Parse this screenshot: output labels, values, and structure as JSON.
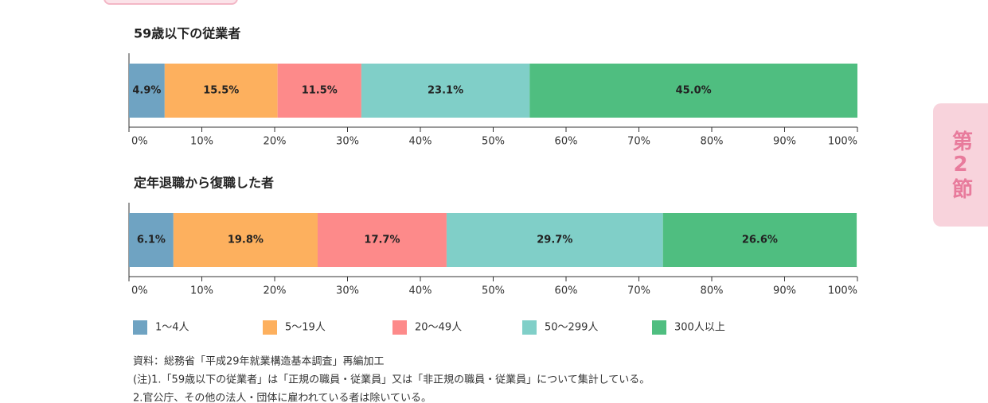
{
  "chart_data": [
    {
      "type": "bar",
      "orientation": "horizontal",
      "stacked": true,
      "title": "59歳以下の従業者",
      "series": [
        {
          "name": "1～4人",
          "color": "#6fa3c2",
          "values": [
            4.9
          ],
          "value_labels": [
            "4.9%"
          ]
        },
        {
          "name": "5～19人",
          "color": "#fdb05e",
          "values": [
            15.5
          ],
          "value_labels": [
            "15.5%"
          ]
        },
        {
          "name": "20～49人",
          "color": "#fd8a8a",
          "values": [
            11.5
          ],
          "value_labels": [
            "11.5%"
          ]
        },
        {
          "name": "50～299人",
          "color": "#80cfc8",
          "values": [
            23.1
          ],
          "value_labels": [
            "23.1%"
          ]
        },
        {
          "name": "300人以上",
          "color": "#4fbe80",
          "values": [
            45.0
          ],
          "value_labels": [
            "45.0%"
          ]
        }
      ],
      "xlim": [
        0,
        100
      ],
      "xticks": [
        {
          "value": 0,
          "label": "0%"
        },
        {
          "value": 10,
          "label": "10%"
        },
        {
          "value": 20,
          "label": "20%"
        },
        {
          "value": 30,
          "label": "30%"
        },
        {
          "value": 40,
          "label": "40%"
        },
        {
          "value": 50,
          "label": "50%"
        },
        {
          "value": 60,
          "label": "60%"
        },
        {
          "value": 70,
          "label": "70%"
        },
        {
          "value": 80,
          "label": "80%"
        },
        {
          "value": 90,
          "label": "90%"
        },
        {
          "value": 100,
          "label": "100%"
        }
      ]
    },
    {
      "type": "bar",
      "orientation": "horizontal",
      "stacked": true,
      "title": "定年退職から復職した者",
      "series": [
        {
          "values": [
            6.1
          ],
          "value_labels": [
            "6.1%"
          ]
        },
        {
          "values": [
            19.8
          ],
          "value_labels": [
            "19.8%"
          ]
        },
        {
          "values": [
            17.7
          ],
          "value_labels": [
            "17.7%"
          ]
        },
        {
          "values": [
            29.7
          ],
          "value_labels": [
            "29.7%"
          ]
        },
        {
          "values": [
            26.6
          ],
          "value_labels": [
            "26.6%"
          ]
        }
      ],
      "xlim": [
        0,
        100
      ],
      "xticks": [
        {
          "value": 0,
          "label": "0%"
        },
        {
          "value": 10,
          "label": "10%"
        },
        {
          "value": 20,
          "label": "20%"
        },
        {
          "value": 30,
          "label": "30%"
        },
        {
          "value": 40,
          "label": "40%"
        },
        {
          "value": 50,
          "label": "50%"
        },
        {
          "value": 60,
          "label": "60%"
        },
        {
          "value": 70,
          "label": "70%"
        },
        {
          "value": 80,
          "label": "80%"
        },
        {
          "value": 90,
          "label": "90%"
        },
        {
          "value": 100,
          "label": "100%"
        }
      ]
    }
  ],
  "notes": [
    "資料：総務省「平成29年就業構造基本調査」再編加工",
    "(注)1.「59歳以下の従業者」は「正規の職員・従業員」又は「非正規の職員・従業員」について集計している。",
    "2.官公庁、その他の法人・団体に雇われている者は除いている。"
  ],
  "side_tab": "第2節"
}
